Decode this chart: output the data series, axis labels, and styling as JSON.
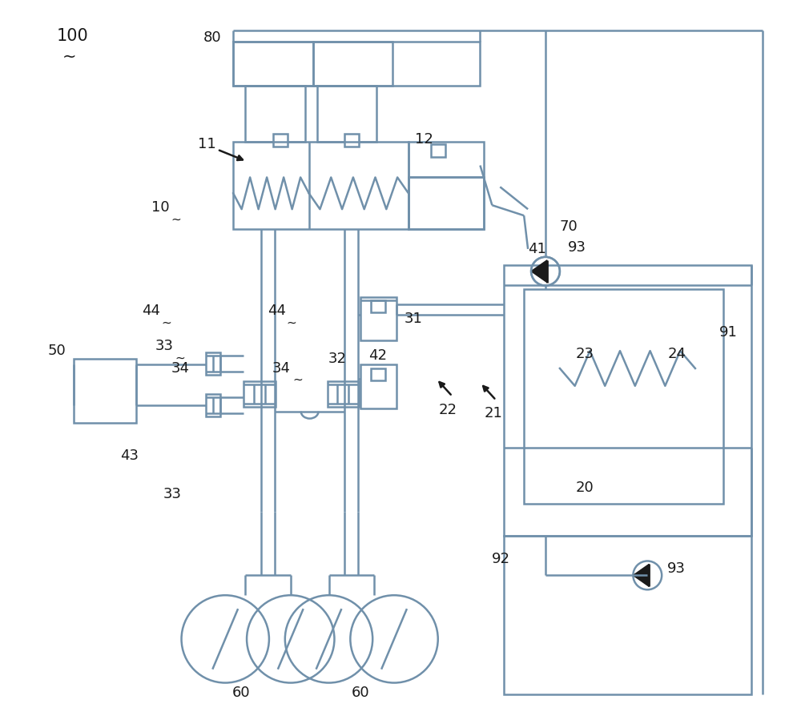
{
  "bg": "#ffffff",
  "lc": "#7090aa",
  "black": "#1a1a1a",
  "fig_w": 10.0,
  "fig_h": 9.09,
  "lw": 1.8,
  "lw_thin": 1.3
}
